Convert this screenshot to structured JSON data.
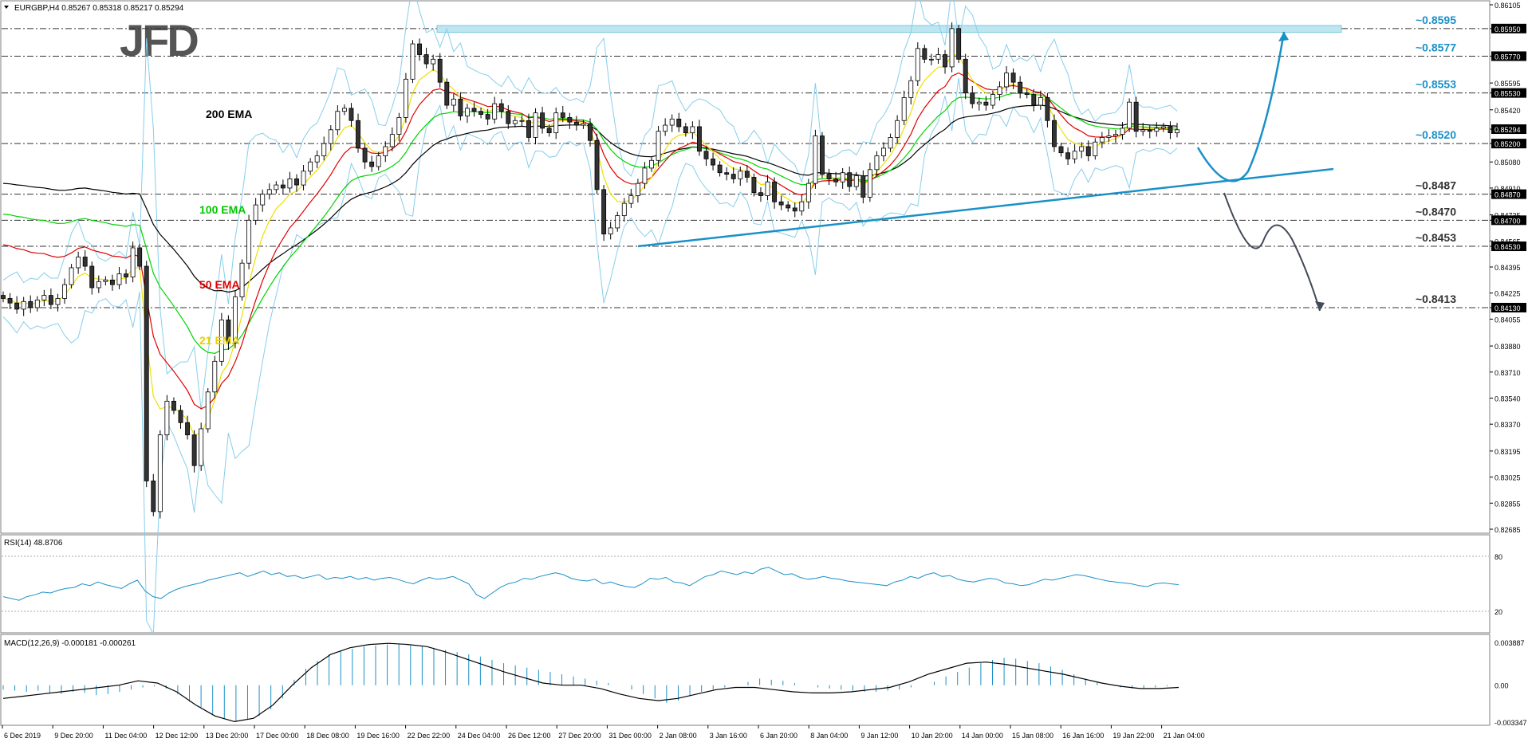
{
  "header": {
    "symbol_line": "EURGBP,H4  0.85267 0.85318 0.85217 0.85294",
    "logo": "JFD"
  },
  "colors": {
    "ema200": "#000000",
    "ema100": "#00d400",
    "ema50": "#e00000",
    "ema21": "#f0e000",
    "bollinger": "#87ceeb",
    "trend": "#1a90c8",
    "level_text": "#1a90c8",
    "level_text_dark": "#333333",
    "rsi": "#1a90c8",
    "macd_hist": "#1a90c8",
    "macd_signal": "#000000",
    "bull_candle": "#ffffff",
    "bear_candle": "#333333"
  },
  "annotations": {
    "ema200": "200 EMA",
    "ema100": "100 EMA",
    "ema50": "50 EMA",
    "ema21": "21 EMA"
  },
  "chart_data": {
    "type": "candlestick",
    "price_axis": {
      "ticks": [
        "0.86105",
        "0.85950",
        "0.85770",
        "0.85595",
        "0.85530",
        "0.85420",
        "0.85294",
        "0.85200",
        "0.85080",
        "0.84910",
        "0.84870",
        "0.84735",
        "0.84700",
        "0.84565",
        "0.84530",
        "0.84395",
        "0.84225",
        "0.84130",
        "0.84055",
        "0.83880",
        "0.83710",
        "0.83540",
        "0.83370",
        "0.83195",
        "0.83025",
        "0.82855",
        "0.82685"
      ],
      "highlighted": [
        "0.85950",
        "0.85770",
        "0.85530",
        "0.85294",
        "0.85200",
        "0.84870",
        "0.84700",
        "0.84530",
        "0.84130"
      ]
    },
    "levels": [
      {
        "value": 0.8595,
        "label": "~0.8595",
        "color": "blue"
      },
      {
        "value": 0.8577,
        "label": "~0.8577",
        "color": "blue"
      },
      {
        "value": 0.8553,
        "label": "~0.8553",
        "color": "blue"
      },
      {
        "value": 0.852,
        "label": "~0.8520",
        "color": "blue"
      },
      {
        "value": 0.8487,
        "label": "~0.8487",
        "color": "dark"
      },
      {
        "value": 0.847,
        "label": "~0.8470",
        "color": "dark"
      },
      {
        "value": 0.8453,
        "label": "~0.8453",
        "color": "dark"
      },
      {
        "value": 0.8413,
        "label": "~0.8413",
        "color": "dark"
      }
    ],
    "x_labels": [
      "6 Dec 2019",
      "9 Dec 20:00",
      "11 Dec 04:00",
      "12 Dec 12:00",
      "13 Dec 20:00",
      "17 Dec 00:00",
      "18 Dec 08:00",
      "19 Dec 16:00",
      "22 Dec 22:00",
      "24 Dec 04:00",
      "26 Dec 12:00",
      "27 Dec 20:00",
      "31 Dec 00:00",
      "2 Jan 08:00",
      "3 Jan 16:00",
      "6 Jan 20:00",
      "8 Jan 04:00",
      "9 Jan 12:00",
      "10 Jan 20:00",
      "14 Jan 00:00",
      "15 Jan 08:00",
      "16 Jan 16:00",
      "19 Jan 22:00",
      "21 Jan 04:00"
    ],
    "close_path": [
      0.8419,
      0.8416,
      0.8412,
      0.8417,
      0.8413,
      0.8418,
      0.8421,
      0.8415,
      0.8419,
      0.8428,
      0.8439,
      0.8446,
      0.844,
      0.8426,
      0.843,
      0.8431,
      0.8428,
      0.8435,
      0.8433,
      0.8452,
      0.844,
      0.83,
      0.828,
      0.833,
      0.8352,
      0.8346,
      0.8338,
      0.833,
      0.831,
      0.8334,
      0.8358,
      0.8378,
      0.8405,
      0.839,
      0.842,
      0.8442,
      0.847,
      0.848,
      0.8487,
      0.849,
      0.8493,
      0.8491,
      0.8497,
      0.8493,
      0.8502,
      0.8508,
      0.8512,
      0.852,
      0.8529,
      0.8541,
      0.8543,
      0.8535,
      0.8517,
      0.8508,
      0.8505,
      0.8512,
      0.8518,
      0.8526,
      0.8537,
      0.8562,
      0.8585,
      0.8578,
      0.8572,
      0.8575,
      0.856,
      0.8545,
      0.8549,
      0.8538,
      0.8543,
      0.8541,
      0.8539,
      0.8536,
      0.8546,
      0.8541,
      0.8533,
      0.8535,
      0.8535,
      0.8524,
      0.854,
      0.853,
      0.8527,
      0.854,
      0.8537,
      0.8534,
      0.8532,
      0.8533,
      0.8522,
      0.849,
      0.8461,
      0.8465,
      0.8473,
      0.8481,
      0.8486,
      0.8494,
      0.8504,
      0.8509,
      0.8528,
      0.8532,
      0.8536,
      0.8531,
      0.8527,
      0.8531,
      0.8515,
      0.851,
      0.8506,
      0.8501,
      0.85,
      0.8497,
      0.8502,
      0.8498,
      0.8488,
      0.8486,
      0.8495,
      0.8482,
      0.848,
      0.8478,
      0.8476,
      0.8482,
      0.8494,
      0.8525,
      0.85,
      0.8497,
      0.8495,
      0.8501,
      0.8492,
      0.8499,
      0.8485,
      0.8503,
      0.8512,
      0.8517,
      0.8524,
      0.8535,
      0.855,
      0.8561,
      0.8582,
      0.8575,
      0.8575,
      0.8578,
      0.857,
      0.8595,
      0.8575,
      0.8553,
      0.8546,
      0.8547,
      0.8545,
      0.8552,
      0.8557,
      0.8566,
      0.856,
      0.8553,
      0.8552,
      0.8545,
      0.855,
      0.8535,
      0.8518,
      0.8514,
      0.851,
      0.8515,
      0.8518,
      0.8512,
      0.8521,
      0.8524,
      0.8525,
      0.8526,
      0.853,
      0.8547,
      0.8528,
      0.8529,
      0.8528,
      0.853,
      0.8531,
      0.8527,
      0.8529
    ],
    "indicators": [
      "200 EMA",
      "100 EMA",
      "50 EMA",
      "21 EMA",
      "Bollinger Bands"
    ],
    "rsi": {
      "label": "RSI(14) 48.8706",
      "ticks": [
        "80",
        "20"
      ],
      "levels": [
        80,
        20
      ],
      "values": [
        36,
        34,
        32,
        36,
        38,
        41,
        40,
        43,
        45,
        46,
        50,
        48,
        52,
        49,
        47,
        45,
        50,
        54,
        42,
        36,
        34,
        40,
        44,
        47,
        49,
        51,
        54,
        56,
        58,
        60,
        62,
        58,
        61,
        64,
        60,
        62,
        58,
        59,
        56,
        58,
        60,
        55,
        57,
        56,
        58,
        55,
        57,
        54,
        56,
        57,
        55,
        52,
        50,
        54,
        57,
        55,
        56,
        58,
        54,
        50,
        38,
        34,
        40,
        46,
        50,
        52,
        56,
        55,
        58,
        60,
        62,
        60,
        56,
        54,
        53,
        55,
        50,
        52,
        49,
        47,
        46,
        50,
        56,
        55,
        57,
        52,
        51,
        48,
        53,
        58,
        60,
        64,
        62,
        60,
        63,
        61,
        66,
        68,
        64,
        60,
        61,
        57,
        55,
        56,
        58,
        56,
        55,
        53,
        52,
        51,
        50,
        49,
        48,
        52,
        54,
        58,
        56,
        60,
        62,
        58,
        59,
        55,
        53,
        52,
        54,
        56,
        55,
        51,
        50,
        48,
        49,
        52,
        55,
        54,
        56,
        58,
        60,
        59,
        57,
        55,
        53,
        52,
        51,
        50,
        48,
        47,
        50,
        51,
        50,
        49
      ]
    },
    "macd": {
      "label": "MACD(12,26,9) -0.000181 -0.000261",
      "ticks": [
        "0.003887",
        "0.00",
        "-0.003347"
      ],
      "hist": [
        -0.0004,
        -0.0005,
        -0.0006,
        -0.0005,
        -0.0007,
        -0.0008,
        -0.0006,
        -0.0007,
        -0.0009,
        -0.0008,
        -0.0006,
        -0.0004,
        -0.0002,
        -0.0001,
        -0.0003,
        -0.0008,
        -0.0015,
        -0.002,
        -0.0026,
        -0.003,
        -0.0033,
        -0.0031,
        -0.0028,
        -0.0022,
        -0.0012,
        0.0005,
        0.0015,
        0.0022,
        0.0028,
        0.0031,
        0.0033,
        0.0035,
        0.0036,
        0.0037,
        0.0037,
        0.0036,
        0.0035,
        0.0034,
        0.0032,
        0.003,
        0.0028,
        0.0026,
        0.0023,
        0.002,
        0.0018,
        0.0016,
        0.0014,
        0.0012,
        0.001,
        0.0008,
        0.0006,
        0.0004,
        0.0002,
        0.0,
        -0.0004,
        -0.0008,
        -0.0012,
        -0.0016,
        -0.0014,
        -0.001,
        -0.0006,
        -0.0004,
        -0.0002,
        0.0,
        0.0003,
        0.0006,
        0.0005,
        0.0004,
        0.0002,
        0.0,
        -0.0002,
        -0.0003,
        -0.0004,
        -0.0005,
        -0.0006,
        -0.0006,
        -0.0005,
        -0.0004,
        -0.0002,
        0.0,
        0.0003,
        0.0008,
        0.0012,
        0.0016,
        0.002,
        0.0023,
        0.0025,
        0.0024,
        0.0022,
        0.002,
        0.0017,
        0.0014,
        0.001,
        0.0006,
        0.0003,
        0.0,
        -0.0002,
        -0.0003,
        -0.0003,
        -0.0002,
        -0.0001,
        0.0
      ],
      "signal": [
        -0.0012,
        -0.001,
        -0.0008,
        -0.0006,
        -0.0004,
        -0.0002,
        0.0,
        0.0004,
        0.0002,
        -0.0006,
        -0.0018,
        -0.0028,
        -0.0033,
        -0.003,
        -0.0018,
        0.0,
        0.0016,
        0.0028,
        0.0034,
        0.0037,
        0.0038,
        0.0037,
        0.0035,
        0.003,
        0.0024,
        0.0018,
        0.0012,
        0.0007,
        0.0002,
        0.0,
        0.0,
        -0.0003,
        -0.0008,
        -0.0012,
        -0.0014,
        -0.0012,
        -0.0008,
        -0.0004,
        -0.0002,
        -0.0002,
        -0.0004,
        -0.0006,
        -0.0007,
        -0.0007,
        -0.0006,
        -0.0004,
        -0.0002,
        0.0003,
        0.001,
        0.0015,
        0.002,
        0.0021,
        0.0019,
        0.0016,
        0.0013,
        0.001,
        0.0006,
        0.0002,
        -0.0001,
        -0.0003,
        -0.0003,
        -0.0002
      ]
    }
  }
}
